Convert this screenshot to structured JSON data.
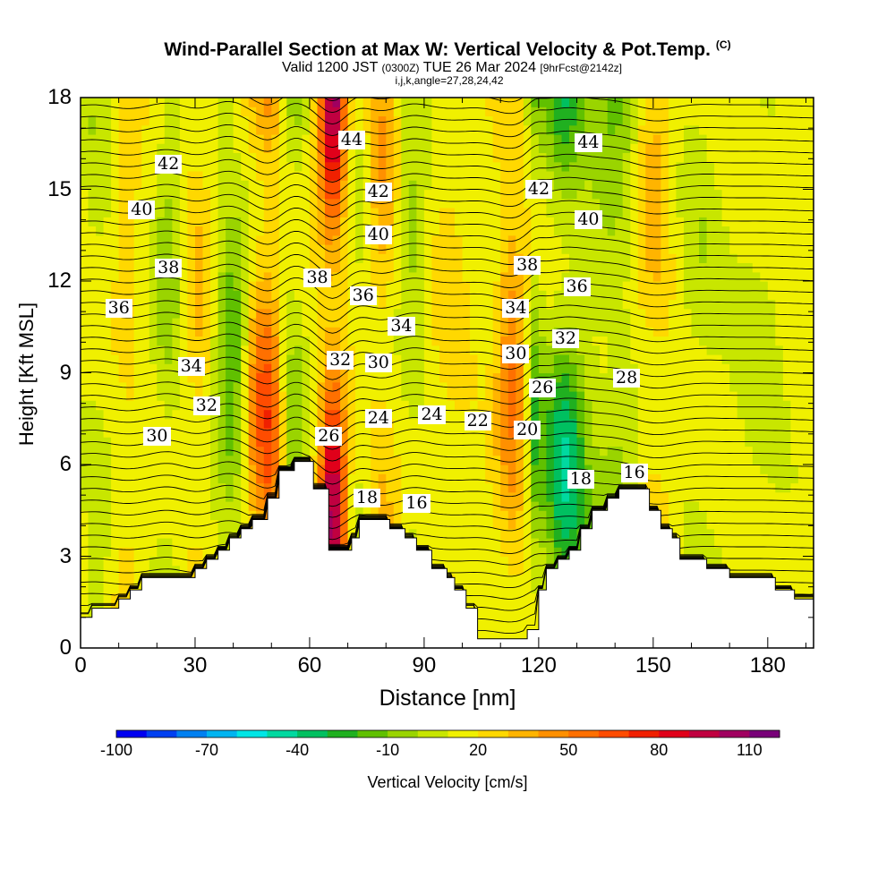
{
  "title": {
    "main": "Wind-Parallel Section at Max W: Vertical Velocity & Pot.Temp.",
    "copyright": "(C)",
    "valid_prefix": "Valid 1200 JST",
    "valid_utc": "(0300Z)",
    "valid_date": "TUE 26 Mar 2024",
    "forecast": "[9hrFcst@2142z]",
    "indices": "i,j,k,angle=27,28,24,42"
  },
  "chart_data": {
    "type": "heatmap",
    "xlabel": "Distance [nm]",
    "ylabel": "Height [Kft MSL]",
    "xlim": [
      0,
      192
    ],
    "ylim": [
      0,
      18
    ],
    "x_ticks": [
      "0",
      "30",
      "60",
      "90",
      "120",
      "150",
      "180"
    ],
    "y_ticks": [
      "0",
      "3",
      "6",
      "9",
      "12",
      "15",
      "18"
    ],
    "colorbar": {
      "title": "Vertical Velocity [cm/s]",
      "tick_labels": [
        "-100",
        "-70",
        "-40",
        "-10",
        "20",
        "50",
        "80",
        "110"
      ],
      "levels": [
        -100,
        -90,
        -80,
        -70,
        -60,
        -50,
        -40,
        -30,
        -20,
        -10,
        0,
        10,
        20,
        30,
        40,
        50,
        60,
        70,
        80,
        90,
        100,
        110,
        120
      ],
      "colors": [
        "#0000f0",
        "#0040f0",
        "#0080f0",
        "#00b4f0",
        "#00e6e6",
        "#00d9a0",
        "#00c060",
        "#20b020",
        "#60c000",
        "#9ad400",
        "#c8e600",
        "#f0f000",
        "#ffd800",
        "#ffb400",
        "#ff9000",
        "#ff7000",
        "#ff4c00",
        "#f02000",
        "#e0001a",
        "#c00040",
        "#a00060",
        "#780078"
      ]
    },
    "terrain_kft": [
      [
        0,
        1.0
      ],
      [
        3,
        1.0
      ],
      [
        3,
        1.3
      ],
      [
        10,
        1.3
      ],
      [
        10,
        1.6
      ],
      [
        13,
        1.6
      ],
      [
        13,
        1.9
      ],
      [
        16,
        1.9
      ],
      [
        16,
        2.3
      ],
      [
        30,
        2.3
      ],
      [
        30,
        2.6
      ],
      [
        33,
        2.6
      ],
      [
        33,
        2.9
      ],
      [
        36,
        2.9
      ],
      [
        36,
        3.2
      ],
      [
        39,
        3.2
      ],
      [
        39,
        3.6
      ],
      [
        42,
        3.6
      ],
      [
        42,
        3.9
      ],
      [
        45,
        3.9
      ],
      [
        45,
        4.2
      ],
      [
        49,
        4.2
      ],
      [
        49,
        4.9
      ],
      [
        52,
        4.9
      ],
      [
        52,
        5.8
      ],
      [
        56,
        5.8
      ],
      [
        56,
        6.1
      ],
      [
        61,
        6.1
      ],
      [
        61,
        5.2
      ],
      [
        65,
        5.2
      ],
      [
        65,
        3.2
      ],
      [
        71,
        3.2
      ],
      [
        71,
        3.6
      ],
      [
        73,
        3.6
      ],
      [
        73,
        4.2
      ],
      [
        78,
        4.2
      ],
      [
        78,
        4.2
      ],
      [
        81,
        4.2
      ],
      [
        81,
        3.9
      ],
      [
        85,
        3.9
      ],
      [
        85,
        3.6
      ],
      [
        88,
        3.6
      ],
      [
        88,
        3.2
      ],
      [
        92,
        3.2
      ],
      [
        92,
        2.6
      ],
      [
        96,
        2.6
      ],
      [
        96,
        2.3
      ],
      [
        98,
        2.3
      ],
      [
        98,
        1.9
      ],
      [
        101,
        1.9
      ],
      [
        101,
        1.3
      ],
      [
        104,
        1.3
      ],
      [
        104,
        0.3
      ],
      [
        117,
        0.3
      ],
      [
        117,
        0.6
      ],
      [
        120,
        0.6
      ],
      [
        120,
        1.9
      ],
      [
        122,
        1.9
      ],
      [
        122,
        2.6
      ],
      [
        125,
        2.6
      ],
      [
        125,
        2.9
      ],
      [
        128,
        2.9
      ],
      [
        128,
        3.2
      ],
      [
        131,
        3.2
      ],
      [
        131,
        3.9
      ],
      [
        134,
        3.9
      ],
      [
        134,
        4.5
      ],
      [
        138,
        4.5
      ],
      [
        138,
        4.9
      ],
      [
        141,
        4.9
      ],
      [
        141,
        5.2
      ],
      [
        149,
        5.2
      ],
      [
        149,
        4.5
      ],
      [
        152,
        4.5
      ],
      [
        152,
        3.9
      ],
      [
        155,
        3.9
      ],
      [
        155,
        3.6
      ],
      [
        157,
        3.6
      ],
      [
        157,
        2.9
      ],
      [
        164,
        2.9
      ],
      [
        164,
        2.6
      ],
      [
        170,
        2.6
      ],
      [
        170,
        2.3
      ],
      [
        182,
        2.3
      ],
      [
        182,
        1.9
      ],
      [
        187,
        1.9
      ],
      [
        187,
        1.6
      ],
      [
        192,
        1.6
      ]
    ],
    "wave_columns": [
      {
        "x": 4,
        "w": 4,
        "amp": -12
      },
      {
        "x": 12,
        "w": 4,
        "amp": 12
      },
      {
        "x": 23,
        "w": 4,
        "amp": -22
      },
      {
        "x": 31,
        "w": 4,
        "amp": 18
      },
      {
        "x": 40,
        "w": 5,
        "amp": -40
      },
      {
        "x": 46,
        "w": 4,
        "amp": 40
      },
      {
        "x": 50,
        "w": 3,
        "amp": 35
      },
      {
        "x": 56,
        "w": 3,
        "amp": -25
      },
      {
        "x": 66,
        "w": 3.5,
        "amp": 95
      },
      {
        "x": 73,
        "w": 3,
        "amp": -10
      },
      {
        "x": 79,
        "w": 4,
        "amp": 25
      },
      {
        "x": 87,
        "w": 4,
        "amp": -20
      },
      {
        "x": 97,
        "w": 5,
        "amp": 10
      },
      {
        "x": 113,
        "w": 4,
        "amp": 40
      },
      {
        "x": 119,
        "w": 2,
        "amp": -30
      },
      {
        "x": 127,
        "w": 6,
        "amp": -55
      },
      {
        "x": 140,
        "w": 6,
        "amp": -30
      },
      {
        "x": 150,
        "w": 5,
        "amp": 22
      },
      {
        "x": 162,
        "w": 6,
        "amp": -12
      },
      {
        "x": 178,
        "w": 8,
        "amp": -10
      }
    ],
    "theta_contours_c": [
      {
        "label": "16",
        "x": 88,
        "y": 4.7
      },
      {
        "label": "16",
        "x": 145,
        "y": 5.7
      },
      {
        "label": "18",
        "x": 75,
        "y": 4.9
      },
      {
        "label": "18",
        "x": 131,
        "y": 5.5
      },
      {
        "label": "20",
        "x": 117,
        "y": 7.1
      },
      {
        "label": "22",
        "x": 104,
        "y": 7.4
      },
      {
        "label": "24",
        "x": 78,
        "y": 7.5
      },
      {
        "label": "24",
        "x": 92,
        "y": 7.6
      },
      {
        "label": "26",
        "x": 65,
        "y": 6.9
      },
      {
        "label": "26",
        "x": 121,
        "y": 8.5
      },
      {
        "label": "28",
        "x": 143,
        "y": 8.8
      },
      {
        "label": "30",
        "x": 20,
        "y": 6.9
      },
      {
        "label": "30",
        "x": 78,
        "y": 9.3
      },
      {
        "label": "30",
        "x": 114,
        "y": 9.6
      },
      {
        "label": "32",
        "x": 33,
        "y": 7.9
      },
      {
        "label": "32",
        "x": 68,
        "y": 9.4
      },
      {
        "label": "32",
        "x": 127,
        "y": 10.1
      },
      {
        "label": "34",
        "x": 29,
        "y": 9.2
      },
      {
        "label": "34",
        "x": 84,
        "y": 10.5
      },
      {
        "label": "34",
        "x": 114,
        "y": 11.1
      },
      {
        "label": "36",
        "x": 10,
        "y": 11.1
      },
      {
        "label": "36",
        "x": 74,
        "y": 11.5
      },
      {
        "label": "36",
        "x": 130,
        "y": 11.8
      },
      {
        "label": "38",
        "x": 23,
        "y": 12.4
      },
      {
        "label": "38",
        "x": 62,
        "y": 12.1
      },
      {
        "label": "38",
        "x": 117,
        "y": 12.5
      },
      {
        "label": "40",
        "x": 16,
        "y": 14.3
      },
      {
        "label": "40",
        "x": 78,
        "y": 13.5
      },
      {
        "label": "40",
        "x": 133,
        "y": 14.0
      },
      {
        "label": "42",
        "x": 23,
        "y": 15.8
      },
      {
        "label": "42",
        "x": 78,
        "y": 14.9
      },
      {
        "label": "42",
        "x": 120,
        "y": 15.0
      },
      {
        "label": "44",
        "x": 71,
        "y": 16.6
      },
      {
        "label": "44",
        "x": 133,
        "y": 16.5
      }
    ]
  }
}
